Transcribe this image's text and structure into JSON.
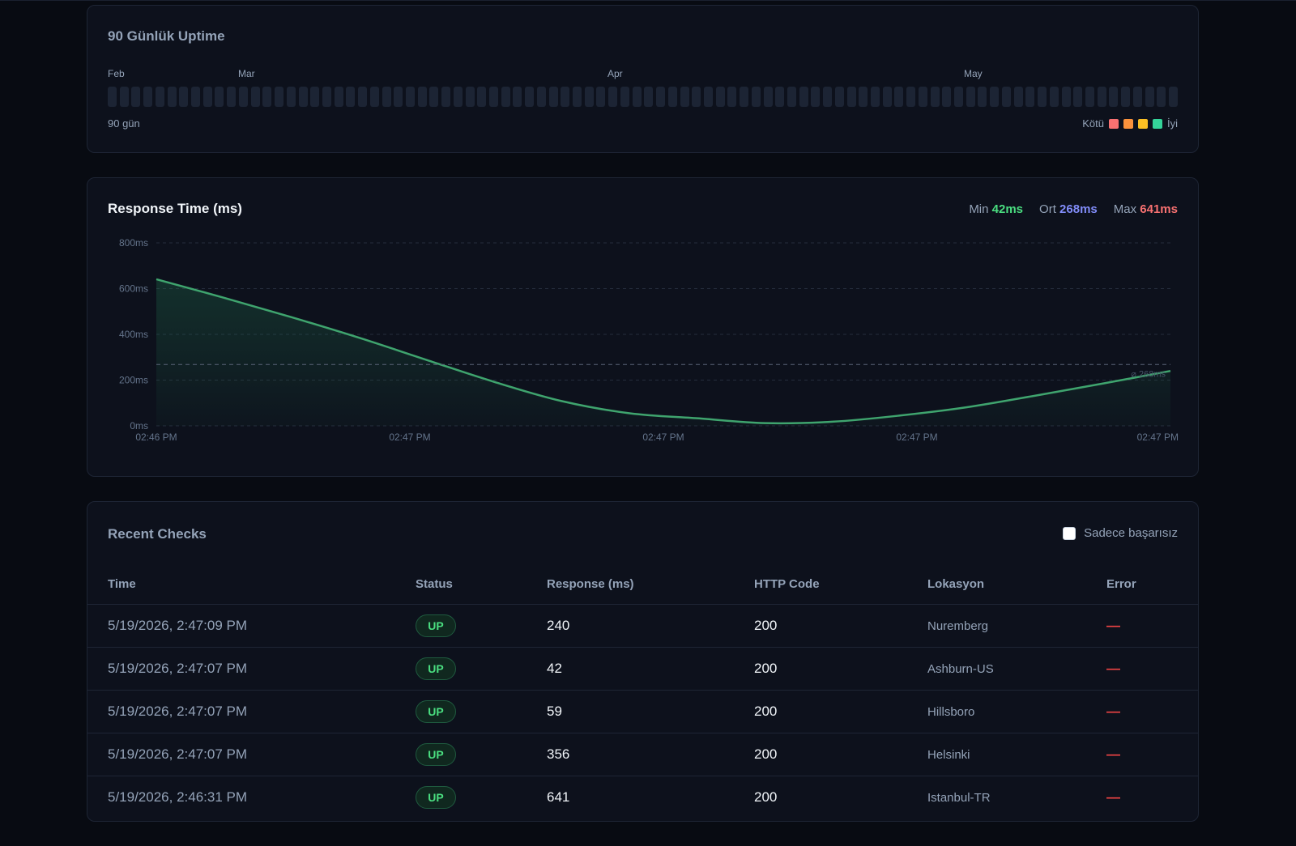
{
  "uptime": {
    "title": "90 Günlük Uptime",
    "months": [
      "Feb",
      "Mar",
      "Apr",
      "May"
    ],
    "days_count": 90,
    "days_label": "90 gün",
    "legend": {
      "bad_label": "Kötü",
      "good_label": "İyi",
      "colors": [
        "#f87171",
        "#fb923c",
        "#fbbf24",
        "#34d399"
      ]
    }
  },
  "response": {
    "title": "Response Time (ms)",
    "stats": {
      "min_label": "Min",
      "min_value": "42ms",
      "avg_label": "Ort",
      "avg_value": "268ms",
      "max_label": "Max",
      "max_value": "641ms"
    },
    "colors": {
      "min": "#4ade80",
      "avg": "#818cf8",
      "max": "#f87171",
      "line": "#3fa46e"
    }
  },
  "chart_data": {
    "type": "area",
    "title": "Response Time (ms)",
    "y_ticks": [
      "0ms",
      "200ms",
      "400ms",
      "600ms",
      "800ms"
    ],
    "ylim": [
      0,
      800
    ],
    "x_ticks": [
      "02:46 PM",
      "02:47 PM",
      "02:47 PM",
      "02:47 PM",
      "02:47 PM"
    ],
    "average_label": "⌀ 268ms",
    "average": 268,
    "grid": true,
    "series": [
      {
        "values": [
          641,
          560,
          475,
          385,
          288,
          192,
          108,
          55,
          33,
          12,
          18,
          45,
          82,
          132,
          185,
          240
        ]
      }
    ]
  },
  "checks": {
    "title": "Recent Checks",
    "filter_label": "Sadece başarısız",
    "columns": [
      "Time",
      "Status",
      "Response (ms)",
      "HTTP Code",
      "Lokasyon",
      "Error"
    ],
    "rows": [
      {
        "time": "5/19/2026, 2:47:09 PM",
        "status": "UP",
        "response": "240",
        "code": "200",
        "location": "Nuremberg",
        "error": "—"
      },
      {
        "time": "5/19/2026, 2:47:07 PM",
        "status": "UP",
        "response": "42",
        "code": "200",
        "location": "Ashburn-US",
        "error": "—"
      },
      {
        "time": "5/19/2026, 2:47:07 PM",
        "status": "UP",
        "response": "59",
        "code": "200",
        "location": "Hillsboro",
        "error": "—"
      },
      {
        "time": "5/19/2026, 2:47:07 PM",
        "status": "UP",
        "response": "356",
        "code": "200",
        "location": "Helsinki",
        "error": "—"
      },
      {
        "time": "5/19/2026, 2:46:31 PM",
        "status": "UP",
        "response": "641",
        "code": "200",
        "location": "Istanbul-TR",
        "error": "—"
      }
    ]
  }
}
